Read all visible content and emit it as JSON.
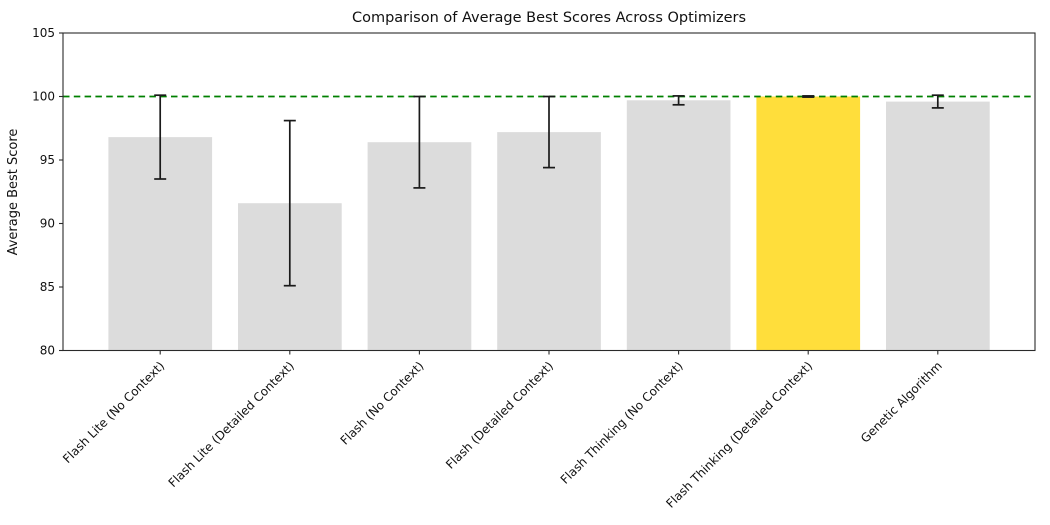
{
  "chart_data": {
    "type": "bar",
    "title": "Comparison of Average Best Scores Across Optimizers",
    "xlabel": "",
    "ylabel": "Average Best Score",
    "categories": [
      "Flash Lite (No Context)",
      "Flash Lite (Detailed Context)",
      "Flash (No Context)",
      "Flash (Detailed Context)",
      "Flash Thinking (No Context)",
      "Flash Thinking (Detailed Context)",
      "Genetic Algorithm"
    ],
    "values": [
      96.8,
      91.6,
      96.4,
      97.2,
      99.7,
      100.0,
      99.6
    ],
    "errors": [
      3.3,
      6.5,
      3.6,
      2.8,
      0.35,
      0.05,
      0.5
    ],
    "ylim": [
      80,
      105
    ],
    "yticks": [
      80,
      85,
      90,
      95,
      100,
      105
    ],
    "grid": false,
    "legend": null,
    "reference_line": {
      "y": 100,
      "color": "#008000",
      "style": "dashed"
    },
    "highlighted_category": "Flash Thinking (Detailed Context)",
    "highlight_index": 5,
    "colors": {
      "bar_default": "#DCDCDC",
      "bar_highlight": "#FFDE3B",
      "error_bar": "#1a1a1a",
      "spine": "#2a2a2a",
      "text": "#111111",
      "background": "#ffffff"
    }
  }
}
